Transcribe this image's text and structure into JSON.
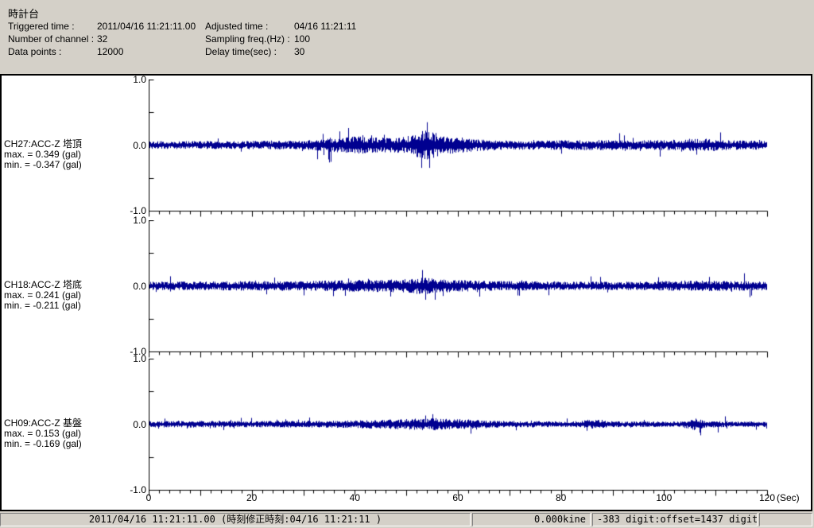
{
  "window_title": "時計台",
  "header": {
    "title": "時計台",
    "fields": [
      {
        "label": "Triggered time :",
        "value": "2011/04/16 11:21:11.00"
      },
      {
        "label": "Adjusted time :",
        "value": "04/16 11:21:11"
      },
      {
        "label": "Number of channel :",
        "value": "32"
      },
      {
        "label": "Sampling freq.(Hz) :",
        "value": "100"
      },
      {
        "label": "Data points :",
        "value": "12000"
      },
      {
        "label": "Delay time(sec) :",
        "value": "30"
      }
    ]
  },
  "chart_data": {
    "type": "line",
    "description": "Three stacked seismic acceleration waveforms (Z-axis), 120 seconds, sampled at 100 Hz, 12000 points each",
    "trace_color": "#000090",
    "axis_color": "#000000",
    "x_axis": {
      "min": 0,
      "max": 120,
      "minor_tick_step": 2,
      "mid_tick_step": 10,
      "label_step": 20,
      "tick_labels": [
        {
          "value": 0,
          "label": "0"
        },
        {
          "value": 20,
          "label": "20"
        },
        {
          "value": 40,
          "label": "40"
        },
        {
          "value": 60,
          "label": "60"
        },
        {
          "value": 80,
          "label": "80"
        },
        {
          "value": 100,
          "label": "100"
        },
        {
          "value": 120,
          "label": "120"
        }
      ],
      "unit_label": "(Sec)"
    },
    "y_axis": {
      "min": -1.0,
      "max": 1.0,
      "tick_step": 0.5,
      "labeled_ticks": [
        {
          "value": 1.0,
          "label": "1.0"
        },
        {
          "value": 0.0,
          "label": "0.0"
        },
        {
          "value": -1.0,
          "label": "-1.0"
        }
      ]
    },
    "channels": [
      {
        "name": "CH27:ACC-Z 塔頂",
        "max_label": "max. = 0.349 (gal)",
        "min_label": "min. = -0.347 (gal)",
        "max": 0.349,
        "min": -0.347,
        "unit": "gal",
        "seed": 27,
        "peaks": [
          {
            "t": 54.0,
            "v": 0.349
          },
          {
            "t": 54.5,
            "v": -0.347
          }
        ],
        "envelope": [
          [
            0,
            0.055
          ],
          [
            15,
            0.06
          ],
          [
            30,
            0.065
          ],
          [
            36,
            0.1
          ],
          [
            40,
            0.13
          ],
          [
            44,
            0.11
          ],
          [
            48,
            0.11
          ],
          [
            51,
            0.14
          ],
          [
            53,
            0.22
          ],
          [
            55,
            0.2
          ],
          [
            57,
            0.13
          ],
          [
            60,
            0.12
          ],
          [
            63,
            0.09
          ],
          [
            68,
            0.07
          ],
          [
            75,
            0.065
          ],
          [
            85,
            0.075
          ],
          [
            95,
            0.07
          ],
          [
            103,
            0.08
          ],
          [
            106,
            0.1
          ],
          [
            109,
            0.09
          ],
          [
            113,
            0.07
          ],
          [
            120,
            0.065
          ]
        ]
      },
      {
        "name": "CH18:ACC-Z 塔底",
        "max_label": "max. = 0.241 (gal)",
        "min_label": "min. = -0.211 (gal)",
        "max": 0.241,
        "min": -0.211,
        "unit": "gal",
        "seed": 18,
        "peaks": [
          {
            "t": 53.0,
            "v": 0.241
          },
          {
            "t": 53.6,
            "v": -0.211
          }
        ],
        "envelope": [
          [
            0,
            0.06
          ],
          [
            10,
            0.065
          ],
          [
            20,
            0.07
          ],
          [
            30,
            0.07
          ],
          [
            38,
            0.085
          ],
          [
            45,
            0.09
          ],
          [
            50,
            0.1
          ],
          [
            53,
            0.13
          ],
          [
            56,
            0.1
          ],
          [
            62,
            0.08
          ],
          [
            70,
            0.07
          ],
          [
            80,
            0.065
          ],
          [
            90,
            0.06
          ],
          [
            98,
            0.065
          ],
          [
            104,
            0.08
          ],
          [
            110,
            0.075
          ],
          [
            120,
            0.065
          ]
        ]
      },
      {
        "name": "CH09:ACC-Z 基盤",
        "max_label": "max. = 0.153 (gal)",
        "min_label": "min. = -0.169 (gal)",
        "max": 0.153,
        "min": -0.169,
        "unit": "gal",
        "seed": 9,
        "peaks": [
          {
            "t": 55.0,
            "v": 0.153
          },
          {
            "t": 107.0,
            "v": -0.169
          }
        ],
        "envelope": [
          [
            0,
            0.045
          ],
          [
            10,
            0.05
          ],
          [
            20,
            0.045
          ],
          [
            30,
            0.05
          ],
          [
            40,
            0.055
          ],
          [
            47,
            0.07
          ],
          [
            51,
            0.08
          ],
          [
            55,
            0.09
          ],
          [
            58,
            0.08
          ],
          [
            62,
            0.07
          ],
          [
            68,
            0.05
          ],
          [
            75,
            0.045
          ],
          [
            82,
            0.04
          ],
          [
            87,
            0.08
          ],
          [
            89,
            0.045
          ],
          [
            95,
            0.04
          ],
          [
            103,
            0.04
          ],
          [
            106,
            0.09
          ],
          [
            108,
            0.05
          ],
          [
            114,
            0.04
          ],
          [
            120,
            0.04
          ]
        ]
      }
    ]
  },
  "status_bar": {
    "panels": [
      {
        "text": "2011/04/16 11:21:11.00  (時刻修正時刻:04/16 11:21:11  )"
      },
      {
        "text": "0.000kine"
      },
      {
        "text": "-383 digit:offset=1437 digit"
      },
      {
        "text": ""
      }
    ]
  }
}
